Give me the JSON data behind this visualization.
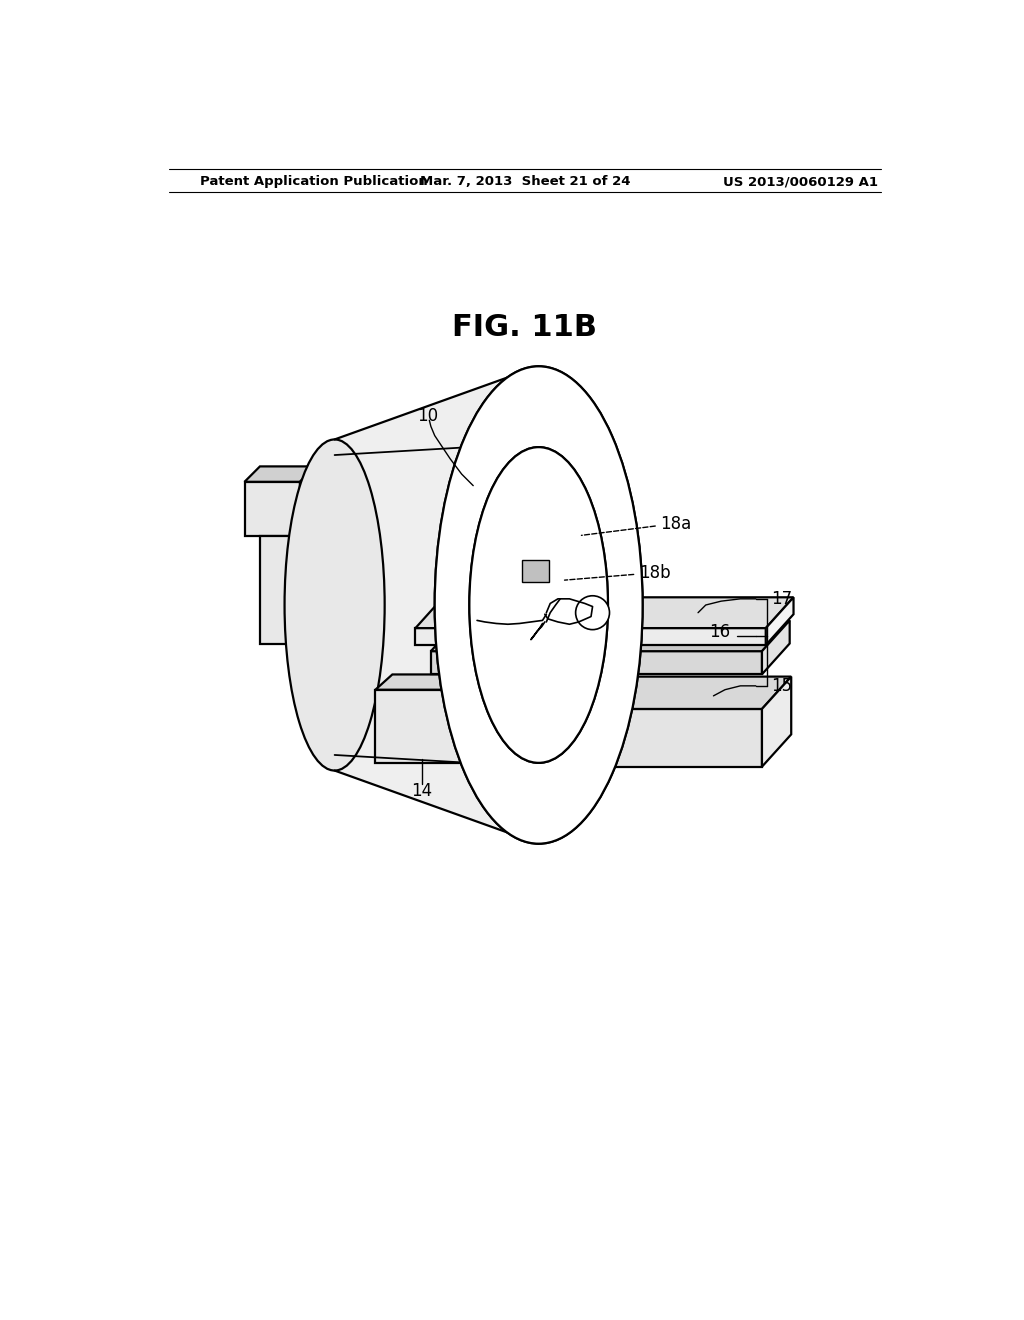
{
  "header_left": "Patent Application Publication",
  "header_center": "Mar. 7, 2013  Sheet 21 of 24",
  "header_right": "US 2013/0060129 A1",
  "title": "FIG. 11B",
  "bg": "#ffffff",
  "lc": "#000000",
  "lw": 1.6
}
